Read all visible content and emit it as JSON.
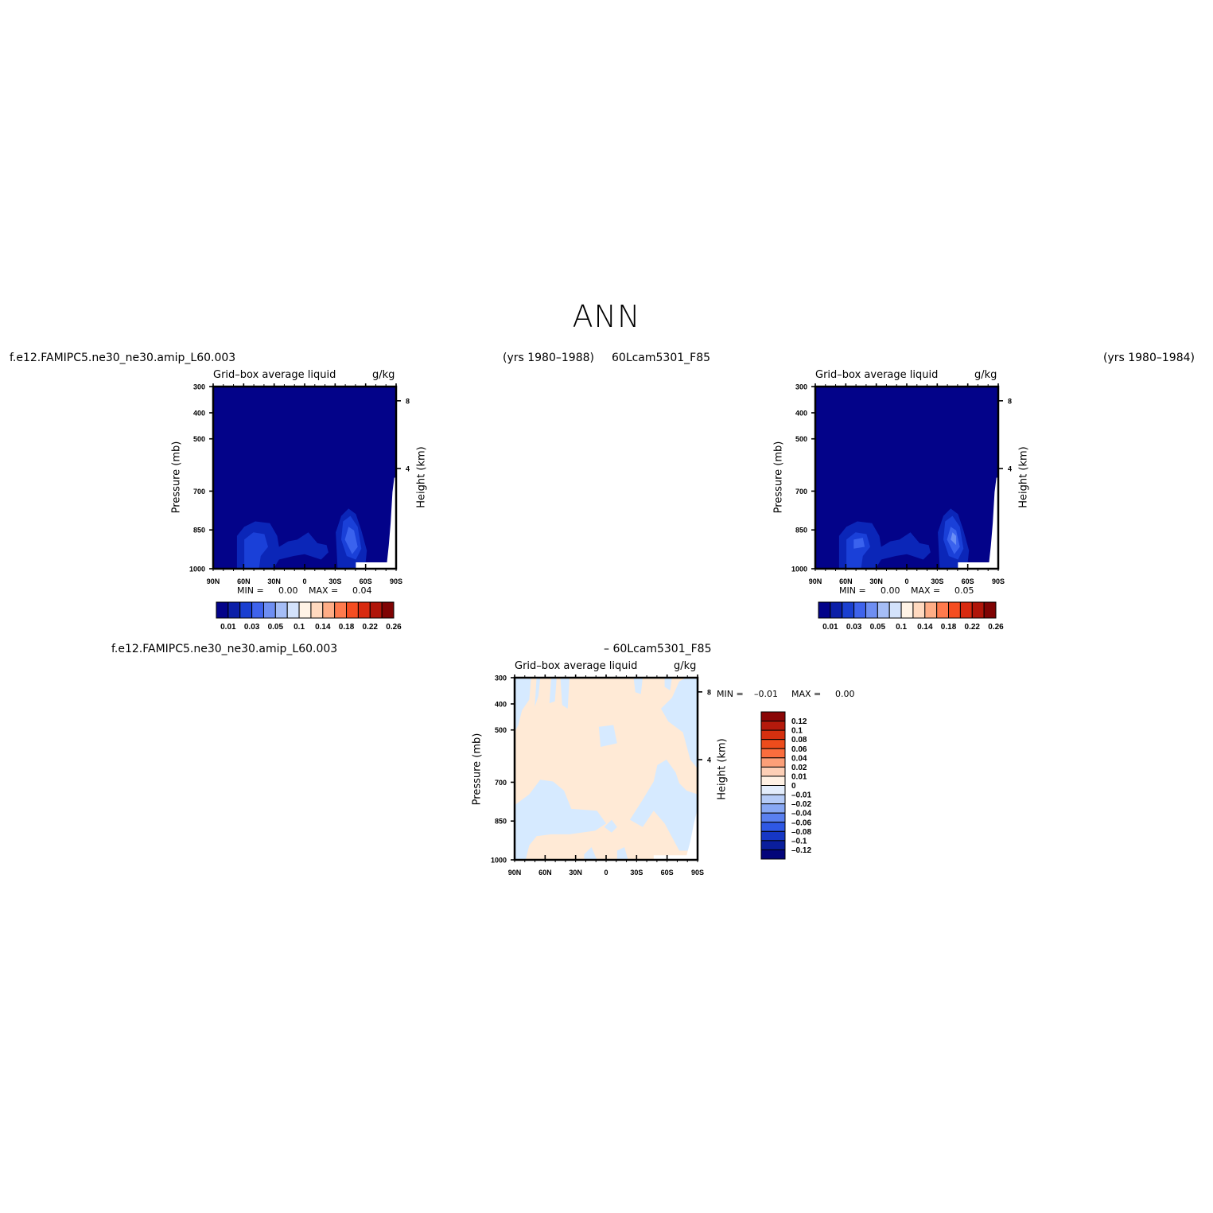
{
  "page_title": "ANN",
  "top_left_case": "f.e12.FAMIPC5.ne30_ne30.amip_L60.003",
  "top_left_years": "(yrs 1980–1988)",
  "top_right_case": "60Lcam5301_F85",
  "top_right_years": "(yrs 1980–1984)",
  "diff_title_left": "f.e12.FAMIPC5.ne30_ne30.amip_L60.003",
  "diff_title_right": "– 60Lcam5301_F85",
  "colors": {
    "dark_blue": "#030389",
    "c1": "#0b26b8",
    "c2": "#1a40d8",
    "c3": "#3a62ee",
    "c4": "#6a8ef5",
    "land_mask": "#ffffff",
    "diff_pos": "#ffead6",
    "diff_neg": "#d6eaff"
  },
  "chart_data": [
    {
      "type": "heatmap",
      "name": "panel-control",
      "title": "Grid–box average liquid",
      "units": "g/kg",
      "xlabel": "",
      "ylabel": "Pressure (mb)",
      "y2label": "Height (km)",
      "x_ticks": [
        "90N",
        "60N",
        "30N",
        "0",
        "30S",
        "60S",
        "90S"
      ],
      "y_ticks": [
        "300",
        "400",
        "500",
        "700",
        "850",
        "1000"
      ],
      "y2_ticks": [
        "8",
        "4"
      ],
      "ylim": [
        1000,
        300
      ],
      "stats": {
        "min_label": "MIN =",
        "min_value": "0.00",
        "max_label": "MAX =",
        "max_value": "0.04"
      },
      "colorbar": {
        "orientation": "horizontal",
        "labels": [
          "0.01",
          "0.03",
          "0.05",
          "0.1",
          "0.14",
          "0.18",
          "0.22",
          "0.26"
        ],
        "colors": [
          "#030389",
          "#0b1fa8",
          "#1a3fd0",
          "#3f63ec",
          "#6e8ef2",
          "#a5bdf6",
          "#d3e2fb",
          "#fff3e6",
          "#ffd9bf",
          "#ffad86",
          "#ff7a4d",
          "#f54d21",
          "#d82a0f",
          "#b01509",
          "#7f0303"
        ]
      }
    },
    {
      "type": "heatmap",
      "name": "panel-test",
      "title": "Grid–box average liquid",
      "units": "g/kg",
      "xlabel": "",
      "ylabel": "Pressure (mb)",
      "y2label": "Height (km)",
      "x_ticks": [
        "90N",
        "60N",
        "30N",
        "0",
        "30S",
        "60S",
        "90S"
      ],
      "y_ticks": [
        "300",
        "400",
        "500",
        "700",
        "850",
        "1000"
      ],
      "y2_ticks": [
        "8",
        "4"
      ],
      "ylim": [
        1000,
        300
      ],
      "stats": {
        "min_label": "MIN =",
        "min_value": "0.00",
        "max_label": "MAX =",
        "max_value": "0.05"
      },
      "colorbar": {
        "orientation": "horizontal",
        "labels": [
          "0.01",
          "0.03",
          "0.05",
          "0.1",
          "0.14",
          "0.18",
          "0.22",
          "0.26"
        ],
        "colors": [
          "#030389",
          "#0b1fa8",
          "#1a3fd0",
          "#3f63ec",
          "#6e8ef2",
          "#a5bdf6",
          "#d3e2fb",
          "#fff3e6",
          "#ffd9bf",
          "#ffad86",
          "#ff7a4d",
          "#f54d21",
          "#d82a0f",
          "#b01509",
          "#7f0303"
        ]
      }
    },
    {
      "type": "heatmap",
      "name": "panel-difference",
      "title": "Grid–box average liquid",
      "units": "g/kg",
      "xlabel": "",
      "ylabel": "Pressure (mb)",
      "y2label": "Height (km)",
      "x_ticks": [
        "90N",
        "60N",
        "30N",
        "0",
        "30S",
        "60S",
        "90S"
      ],
      "y_ticks": [
        "300",
        "400",
        "500",
        "700",
        "850",
        "1000"
      ],
      "y2_ticks": [
        "8",
        "4"
      ],
      "ylim": [
        1000,
        300
      ],
      "stats": {
        "min_label": "MIN =",
        "min_value": "–0.01",
        "max_label": "MAX =",
        "max_value": "0.00"
      },
      "colorbar": {
        "orientation": "vertical",
        "labels": [
          "0.12",
          "0.1",
          "0.08",
          "0.06",
          "0.04",
          "0.02",
          "0.01",
          "0",
          "–0.01",
          "–0.02",
          "–0.04",
          "–0.06",
          "–0.08",
          "–0.1",
          "–0.12"
        ],
        "colors": [
          "#8a0606",
          "#b51a0c",
          "#d6300f",
          "#ed4c1c",
          "#fb6d3d",
          "#fc9f78",
          "#fdcfb6",
          "#fff1e4",
          "#e3edfc",
          "#b5cbf7",
          "#88a8f4",
          "#5a80f0",
          "#2f58e4",
          "#1637c5",
          "#0a1e9c",
          "#03057a"
        ]
      }
    }
  ]
}
